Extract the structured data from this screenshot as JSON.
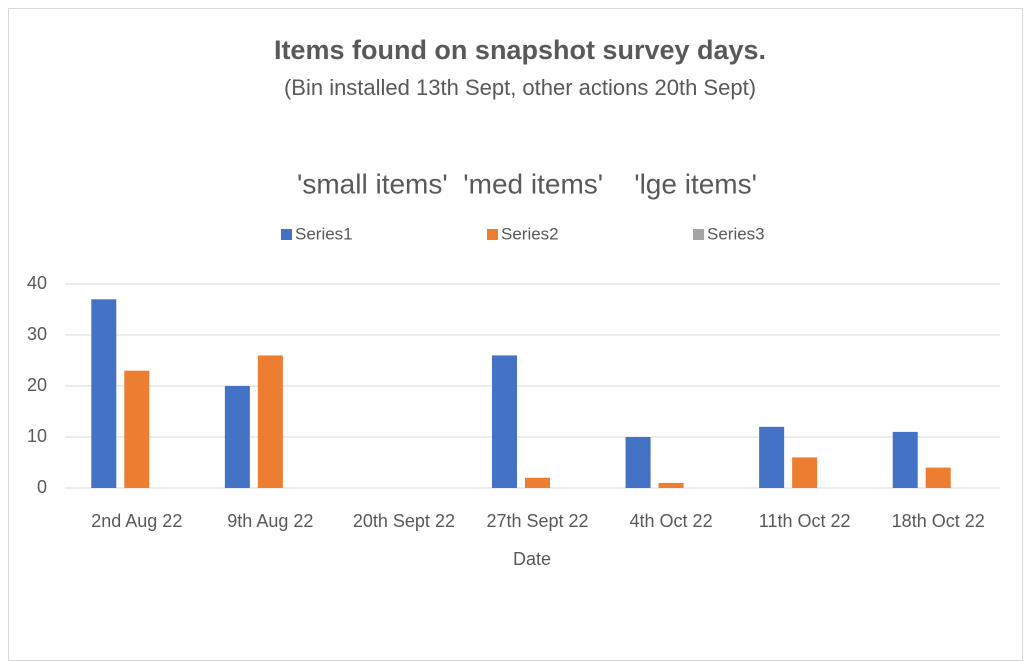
{
  "chart_data": {
    "type": "bar",
    "title": "Items found on snapshot survey days.",
    "subtitle": "(Bin installed 13th Sept, other actions 20th Sept)",
    "annotation": "'small items'  'med items'    'lge items'",
    "x_label": "Date",
    "categories": [
      "2nd Aug 22",
      "9th Aug 22",
      "20th Sept 22",
      "27th Sept 22",
      "4th Oct 22",
      "11th Oct 22",
      "18th Oct 22"
    ],
    "series": [
      {
        "name": "Series1",
        "color": "#4472c4",
        "values": [
          37,
          20,
          0,
          26,
          10,
          12,
          11
        ]
      },
      {
        "name": "Series2",
        "color": "#ed7d31",
        "values": [
          23,
          26,
          0,
          2,
          1,
          6,
          4
        ]
      },
      {
        "name": "Series3",
        "color": "#a5a5a5",
        "values": [
          0,
          0,
          0,
          0,
          0,
          0,
          0
        ]
      }
    ],
    "ylim": [
      0,
      40
    ],
    "yticks": [
      0,
      10,
      20,
      30,
      40
    ],
    "grid": true,
    "legend": "top"
  }
}
